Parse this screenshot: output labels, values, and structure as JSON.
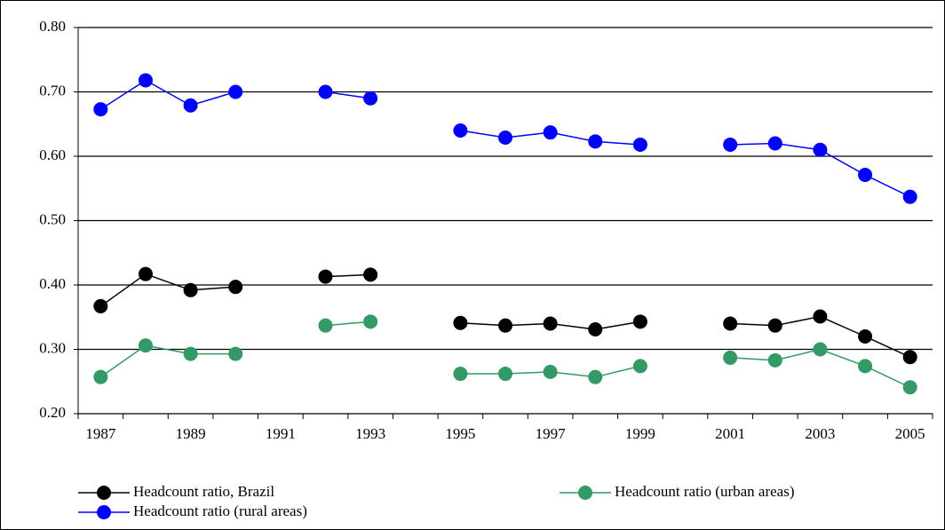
{
  "chart_data": {
    "type": "line",
    "categories": [
      "1987",
      null,
      "1989",
      null,
      "1991",
      null,
      "1993",
      null,
      "1995",
      null,
      "1997",
      null,
      "1999",
      null,
      "2001",
      null,
      "2003",
      null,
      "2005"
    ],
    "series": [
      {
        "name": "Headcount ratio, Brazil",
        "color": "#000000",
        "values": [
          0.367,
          0.417,
          0.392,
          0.397,
          null,
          0.413,
          0.416,
          null,
          0.341,
          0.337,
          0.34,
          0.331,
          0.343,
          null,
          0.34,
          0.337,
          0.351,
          0.32,
          0.288
        ]
      },
      {
        "name": "Headcount ratio (urban areas)",
        "color": "#339966",
        "values": [
          0.257,
          0.306,
          0.293,
          0.293,
          null,
          0.337,
          0.343,
          null,
          0.262,
          0.262,
          0.265,
          0.257,
          0.274,
          null,
          0.287,
          0.283,
          0.3,
          0.274,
          0.241
        ]
      },
      {
        "name": "Headcount ratio (rural areas)",
        "color": "#0000ff",
        "values": [
          0.673,
          0.718,
          0.679,
          0.7,
          null,
          0.7,
          0.69,
          null,
          0.64,
          0.629,
          0.637,
          0.623,
          0.618,
          null,
          0.618,
          0.62,
          0.61,
          0.571,
          0.537
        ]
      }
    ],
    "ylim": [
      0.2,
      0.8
    ],
    "yticks": [
      {
        "value": 0.2,
        "label": "0.20"
      },
      {
        "value": 0.3,
        "label": "0.30"
      },
      {
        "value": 0.4,
        "label": "0.40"
      },
      {
        "value": 0.5,
        "label": "0.50"
      },
      {
        "value": 0.6,
        "label": "0.60"
      },
      {
        "value": 0.7,
        "label": "0.70"
      },
      {
        "value": 0.8,
        "label": "0.80"
      }
    ],
    "grid": true
  }
}
